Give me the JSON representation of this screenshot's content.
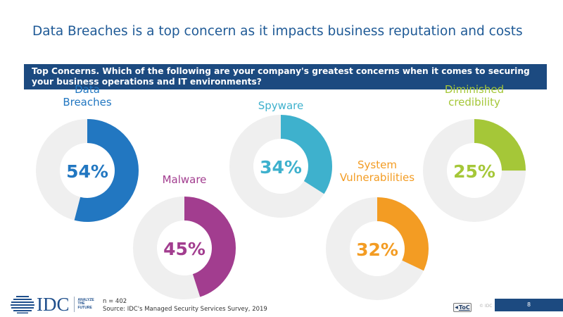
{
  "title": "Data Breaches is a top concern as it impacts business reputation and costs",
  "banner": "Top Concerns. Which of the following are your company's greatest concerns when it comes to securing your business operations and IT environments?",
  "chart_data": {
    "type": "donut",
    "series": [
      {
        "name": "Data\nBreaches",
        "value": 54,
        "label": "54%",
        "color": "#2277c1"
      },
      {
        "name": "Malware",
        "value": 45,
        "label": "45%",
        "color": "#a23d8f"
      },
      {
        "name": "Spyware",
        "value": 34,
        "label": "34%",
        "color": "#3eb1cd"
      },
      {
        "name": "System\nVulnerabilities",
        "value": 32,
        "label": "32%",
        "color": "#f39c23"
      },
      {
        "name": "Diminished\ncredibility",
        "value": 25,
        "label": "25%",
        "color": "#a5c738"
      }
    ],
    "track_color": "#efefef"
  },
  "footer": {
    "n": "n = 402",
    "source": "Source: IDC's Managed Security Services Survey, 2019"
  },
  "logo": {
    "text": "IDC",
    "tagline": [
      "ANALYZE",
      "THE",
      "FUTURE"
    ]
  },
  "toc_label": "ToC",
  "copyright": "© IDC",
  "page_number": "8"
}
